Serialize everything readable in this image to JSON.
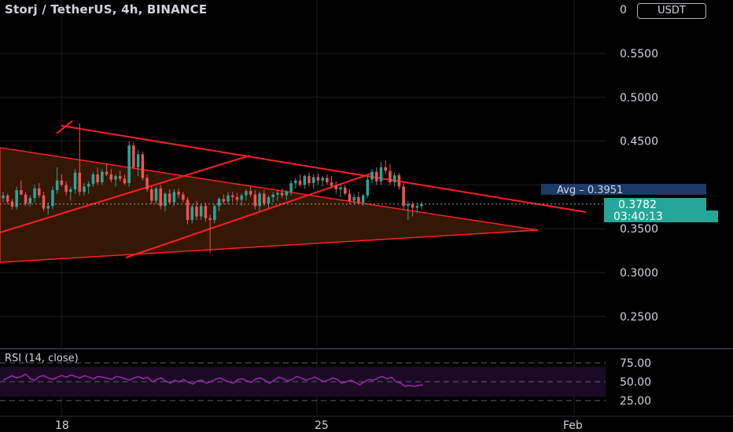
{
  "header": {
    "symbol_title": "Storj / TetherUS, 4h, BINANCE",
    "currency_button": "USDT",
    "axis_clipped_label": "0"
  },
  "colors": {
    "background": "#000000",
    "up": "#26a69a",
    "down": "#ef5350",
    "trendline": "#ff1f1f",
    "triangle_fill": "#3a1a06",
    "rsi_line": "#9c27b0",
    "rsi_band": "#1b0a24",
    "grid": "#1e1e1e",
    "avg_badge": "#1e3a66",
    "price_badge": "#26a69a"
  },
  "badges": {
    "avg": "Avg  –  0.3951",
    "last_price": "0.3782",
    "countdown": "03:40:13"
  },
  "chart_data": [
    {
      "type": "candlestick",
      "title": "Storj / TetherUS, 4h, BINANCE",
      "ylim": [
        0.22,
        0.6
      ],
      "y_ticks": [
        "0.5500",
        "0.5000",
        "0.4500",
        "0.3500",
        "0.3000",
        "0.2500"
      ],
      "x_ticks": [
        "18",
        "25",
        "Feb"
      ],
      "last_price": 0.3782,
      "average_price": 0.3951,
      "grid": true,
      "candles": [
        [
          0.385,
          0.392,
          0.38,
          0.388
        ],
        [
          0.388,
          0.39,
          0.378,
          0.381
        ],
        [
          0.381,
          0.384,
          0.372,
          0.375
        ],
        [
          0.375,
          0.398,
          0.372,
          0.394
        ],
        [
          0.394,
          0.405,
          0.388,
          0.389
        ],
        [
          0.389,
          0.392,
          0.376,
          0.379
        ],
        [
          0.379,
          0.388,
          0.375,
          0.385
        ],
        [
          0.385,
          0.4,
          0.38,
          0.396
        ],
        [
          0.396,
          0.402,
          0.385,
          0.388
        ],
        [
          0.388,
          0.392,
          0.37,
          0.373
        ],
        [
          0.373,
          0.38,
          0.366,
          0.376
        ],
        [
          0.376,
          0.398,
          0.372,
          0.394
        ],
        [
          0.394,
          0.42,
          0.39,
          0.405
        ],
        [
          0.405,
          0.412,
          0.398,
          0.4
        ],
        [
          0.4,
          0.404,
          0.388,
          0.392
        ],
        [
          0.392,
          0.398,
          0.382,
          0.395
        ],
        [
          0.395,
          0.418,
          0.39,
          0.414
        ],
        [
          0.414,
          0.47,
          0.388,
          0.392
        ],
        [
          0.392,
          0.402,
          0.388,
          0.398
        ],
        [
          0.398,
          0.404,
          0.39,
          0.401
        ],
        [
          0.401,
          0.415,
          0.398,
          0.412
        ],
        [
          0.412,
          0.42,
          0.4,
          0.403
        ],
        [
          0.403,
          0.418,
          0.4,
          0.415
        ],
        [
          0.415,
          0.425,
          0.41,
          0.412
        ],
        [
          0.412,
          0.418,
          0.403,
          0.406
        ],
        [
          0.406,
          0.412,
          0.398,
          0.41
        ],
        [
          0.41,
          0.416,
          0.404,
          0.407
        ],
        [
          0.407,
          0.412,
          0.4,
          0.402
        ],
        [
          0.402,
          0.45,
          0.398,
          0.445
        ],
        [
          0.445,
          0.448,
          0.418,
          0.42
        ],
        [
          0.42,
          0.44,
          0.41,
          0.435
        ],
        [
          0.435,
          0.438,
          0.405,
          0.408
        ],
        [
          0.408,
          0.412,
          0.392,
          0.395
        ],
        [
          0.395,
          0.398,
          0.378,
          0.382
        ],
        [
          0.382,
          0.398,
          0.378,
          0.396
        ],
        [
          0.396,
          0.4,
          0.372,
          0.376
        ],
        [
          0.376,
          0.392,
          0.37,
          0.39
        ],
        [
          0.39,
          0.395,
          0.378,
          0.38
        ],
        [
          0.38,
          0.395,
          0.376,
          0.392
        ],
        [
          0.392,
          0.396,
          0.385,
          0.389
        ],
        [
          0.389,
          0.392,
          0.38,
          0.383
        ],
        [
          0.383,
          0.386,
          0.355,
          0.36
        ],
        [
          0.36,
          0.378,
          0.356,
          0.375
        ],
        [
          0.375,
          0.382,
          0.36,
          0.364
        ],
        [
          0.364,
          0.378,
          0.36,
          0.376
        ],
        [
          0.376,
          0.38,
          0.358,
          0.362
        ],
        [
          0.362,
          0.366,
          0.322,
          0.36
        ],
        [
          0.36,
          0.378,
          0.356,
          0.376
        ],
        [
          0.376,
          0.386,
          0.37,
          0.384
        ],
        [
          0.384,
          0.389,
          0.378,
          0.381
        ],
        [
          0.381,
          0.392,
          0.378,
          0.388
        ],
        [
          0.388,
          0.392,
          0.38,
          0.386
        ],
        [
          0.386,
          0.391,
          0.38,
          0.383
        ],
        [
          0.383,
          0.39,
          0.376,
          0.388
        ],
        [
          0.388,
          0.395,
          0.382,
          0.393
        ],
        [
          0.393,
          0.398,
          0.386,
          0.389
        ],
        [
          0.389,
          0.394,
          0.372,
          0.376
        ],
        [
          0.376,
          0.392,
          0.37,
          0.39
        ],
        [
          0.39,
          0.394,
          0.376,
          0.379
        ],
        [
          0.379,
          0.388,
          0.374,
          0.386
        ],
        [
          0.386,
          0.392,
          0.38,
          0.389
        ],
        [
          0.389,
          0.394,
          0.382,
          0.391
        ],
        [
          0.391,
          0.396,
          0.385,
          0.388
        ],
        [
          0.388,
          0.394,
          0.382,
          0.392
        ],
        [
          0.392,
          0.405,
          0.388,
          0.402
        ],
        [
          0.402,
          0.408,
          0.396,
          0.405
        ],
        [
          0.405,
          0.412,
          0.398,
          0.4
        ],
        [
          0.4,
          0.412,
          0.396,
          0.41
        ],
        [
          0.41,
          0.414,
          0.398,
          0.402
        ],
        [
          0.402,
          0.412,
          0.396,
          0.409
        ],
        [
          0.409,
          0.413,
          0.4,
          0.405
        ],
        [
          0.405,
          0.41,
          0.398,
          0.408
        ],
        [
          0.408,
          0.412,
          0.4,
          0.403
        ],
        [
          0.403,
          0.41,
          0.396,
          0.399
        ],
        [
          0.399,
          0.404,
          0.39,
          0.395
        ],
        [
          0.395,
          0.4,
          0.386,
          0.397
        ],
        [
          0.397,
          0.4,
          0.388,
          0.39
        ],
        [
          0.39,
          0.395,
          0.378,
          0.382
        ],
        [
          0.382,
          0.39,
          0.378,
          0.386
        ],
        [
          0.386,
          0.392,
          0.378,
          0.38
        ],
        [
          0.38,
          0.39,
          0.376,
          0.388
        ],
        [
          0.388,
          0.41,
          0.385,
          0.406
        ],
        [
          0.406,
          0.418,
          0.402,
          0.415
        ],
        [
          0.415,
          0.42,
          0.4,
          0.404
        ],
        [
          0.404,
          0.426,
          0.4,
          0.42
        ],
        [
          0.42,
          0.428,
          0.412,
          0.416
        ],
        [
          0.416,
          0.424,
          0.4,
          0.403
        ],
        [
          0.403,
          0.414,
          0.398,
          0.411
        ],
        [
          0.411,
          0.414,
          0.395,
          0.398
        ],
        [
          0.398,
          0.402,
          0.372,
          0.376
        ],
        [
          0.376,
          0.382,
          0.36,
          0.378
        ],
        [
          0.378,
          0.381,
          0.364,
          0.374
        ],
        [
          0.374,
          0.38,
          0.368,
          0.376
        ],
        [
          0.376,
          0.381,
          0.372,
          0.378
        ]
      ]
    },
    {
      "type": "line",
      "title": "RSI (14, close)",
      "ylim": [
        15,
        80
      ],
      "y_ticks": [
        "75.00",
        "50.00",
        "25.00"
      ],
      "band": [
        30,
        70
      ],
      "values": [
        52,
        55,
        58,
        55,
        57,
        60,
        54,
        52,
        57,
        58,
        55,
        53,
        56,
        58,
        56,
        59,
        57,
        55,
        58,
        56,
        54,
        57,
        56,
        55,
        53,
        57,
        56,
        54,
        52,
        55,
        57,
        54,
        56,
        50,
        53,
        55,
        51,
        48,
        52,
        50,
        53,
        49,
        47,
        51,
        52,
        48,
        50,
        53,
        55,
        52,
        50,
        48,
        53,
        54,
        51,
        49,
        54,
        55,
        52,
        48,
        52,
        56,
        54,
        51,
        53,
        57,
        55,
        52,
        54,
        56,
        53,
        50,
        52,
        55,
        53,
        48,
        50,
        52,
        49,
        46,
        50,
        53,
        52,
        55,
        57,
        54,
        56,
        50,
        48,
        44,
        45,
        44,
        45,
        46
      ]
    }
  ]
}
